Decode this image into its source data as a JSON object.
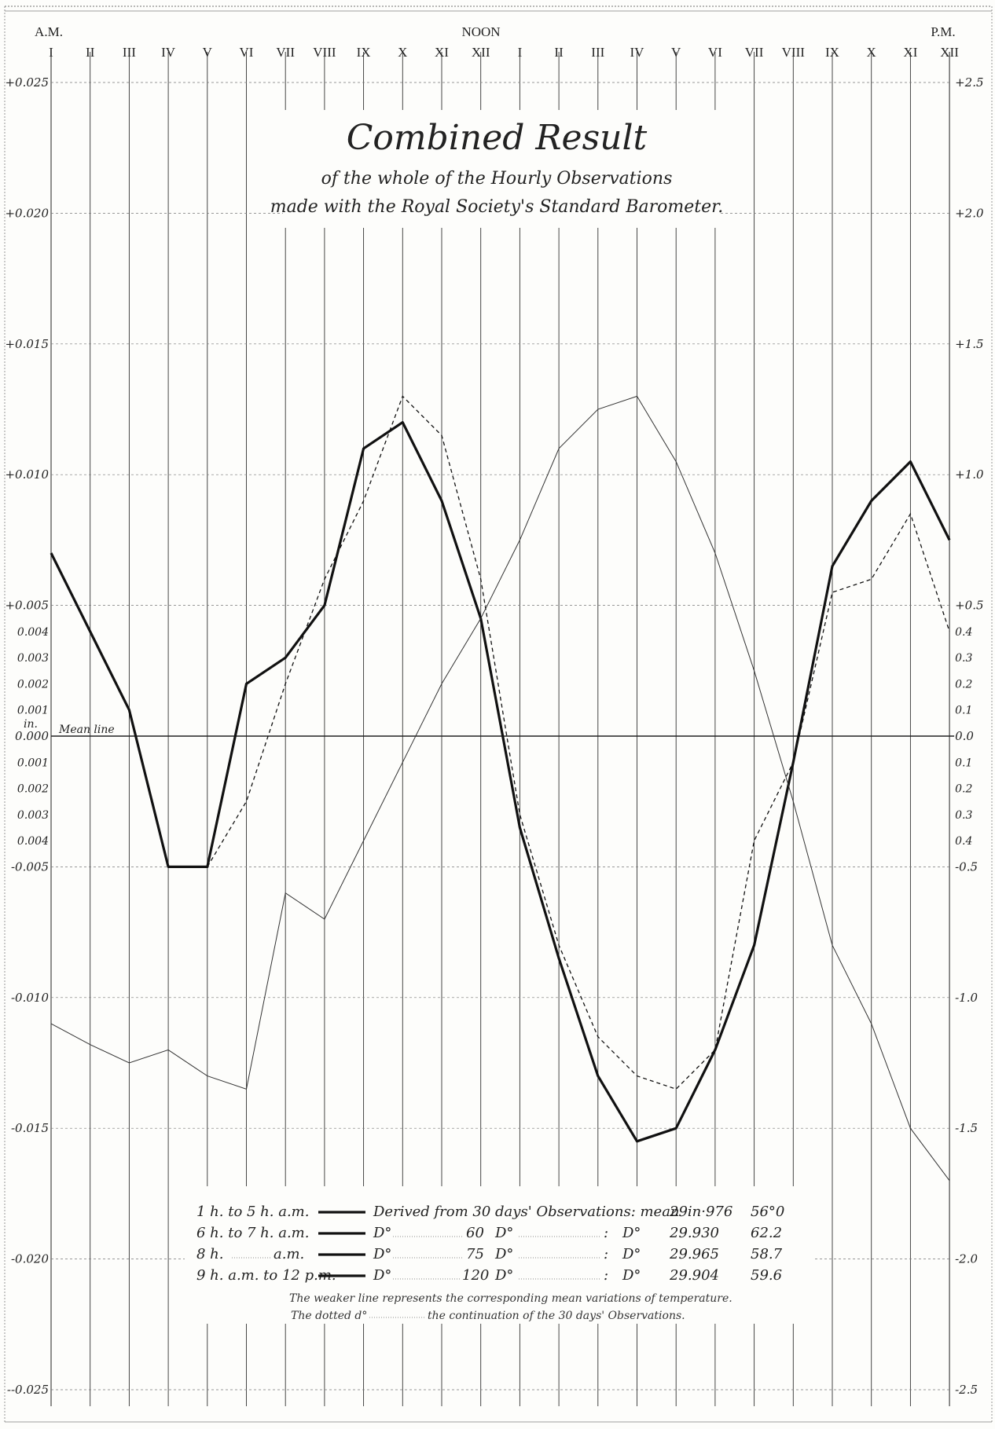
{
  "chart_data": {
    "type": "line",
    "title": "Combined Result",
    "subtitle_lines": [
      "of the whole of the Hourly Observations",
      "made with the Royal Society's Standard Barometer."
    ],
    "am_label": "A.M.",
    "noon_label": "NOON",
    "pm_label": "P.M.",
    "hours": [
      "I",
      "II",
      "III",
      "IV",
      "V",
      "VI",
      "VII",
      "VIII",
      "IX",
      "X",
      "XI",
      "XII",
      "I",
      "II",
      "III",
      "IV",
      "V",
      "VI",
      "VII",
      "VIII",
      "IX",
      "X",
      "XI",
      "XII"
    ],
    "y_unit_label": "in.",
    "mean_line_label": "Mean line",
    "ylim": [
      -0.025,
      0.025
    ],
    "y2lim": [
      -2.5,
      2.5
    ],
    "left_ticks": [
      {
        "v": 0.025,
        "t": "+0.025"
      },
      {
        "v": 0.02,
        "t": "+0.020"
      },
      {
        "v": 0.015,
        "t": "+0.015"
      },
      {
        "v": 0.01,
        "t": "+0.010"
      },
      {
        "v": 0.005,
        "t": "+0.005"
      },
      {
        "v": 0.004,
        "t": "0.004"
      },
      {
        "v": 0.003,
        "t": "0.003"
      },
      {
        "v": 0.002,
        "t": "0.002"
      },
      {
        "v": 0.001,
        "t": "0.001"
      },
      {
        "v": 0.0,
        "t": "0.000"
      },
      {
        "v": -0.001,
        "t": "0.001"
      },
      {
        "v": -0.002,
        "t": "0.002"
      },
      {
        "v": -0.003,
        "t": "0.003"
      },
      {
        "v": -0.004,
        "t": "0.004"
      },
      {
        "v": -0.005,
        "t": "-0.005"
      },
      {
        "v": -0.01,
        "t": "-0.010"
      },
      {
        "v": -0.015,
        "t": "-0.015"
      },
      {
        "v": -0.02,
        "t": "-0.020"
      },
      {
        "v": -0.025,
        "t": "--0.025"
      }
    ],
    "right_ticks": [
      {
        "v": 2.5,
        "t": "+2.5"
      },
      {
        "v": 2.0,
        "t": "+2.0"
      },
      {
        "v": 1.5,
        "t": "+1.5"
      },
      {
        "v": 1.0,
        "t": "+1.0"
      },
      {
        "v": 0.5,
        "t": "+0.5"
      },
      {
        "v": 0.4,
        "t": "0.4"
      },
      {
        "v": 0.3,
        "t": "0.3"
      },
      {
        "v": 0.2,
        "t": "0.2"
      },
      {
        "v": 0.1,
        "t": "0.1"
      },
      {
        "v": 0.0,
        "t": "0.0"
      },
      {
        "v": -0.1,
        "t": "0.1"
      },
      {
        "v": -0.2,
        "t": "0.2"
      },
      {
        "v": -0.3,
        "t": "0.3"
      },
      {
        "v": -0.4,
        "t": "0.4"
      },
      {
        "v": -0.5,
        "t": "-0.5"
      },
      {
        "v": -1.0,
        "t": "-1.0"
      },
      {
        "v": -1.5,
        "t": "-1.5"
      },
      {
        "v": -2.0,
        "t": "-2.0"
      },
      {
        "v": -2.5,
        "t": "-2.5"
      }
    ],
    "series": [
      {
        "style": "thick",
        "values": [
          0.007,
          0.004,
          0.001,
          -0.005,
          -0.005,
          0.002,
          0.003,
          0.005,
          0.011,
          0.012,
          0.009,
          0.0045,
          -0.0035,
          -0.0085,
          -0.013,
          -0.0155,
          -0.015,
          -0.012,
          -0.008,
          -0.001,
          0.0065,
          0.009,
          0.0105,
          0.0075
        ]
      },
      {
        "style": "dotted",
        "values": [
          null,
          null,
          null,
          null,
          -0.005,
          -0.0025,
          0.002,
          0.006,
          0.009,
          0.013,
          0.0115,
          0.006,
          -0.003,
          -0.008,
          -0.0115,
          -0.013,
          -0.0135,
          -0.012,
          -0.004,
          -0.001,
          0.0055,
          0.006,
          0.0085,
          0.004
        ]
      },
      {
        "style": "thin",
        "axis": "right",
        "values": [
          -1.1,
          -1.18,
          -1.25,
          -1.2,
          -1.3,
          -1.35,
          -0.6,
          -0.7,
          -0.4,
          -0.1,
          0.2,
          0.45,
          0.75,
          1.1,
          1.25,
          1.3,
          1.05,
          0.7,
          0.25,
          -0.25,
          -0.8,
          -1.1,
          -1.5,
          -1.7
        ]
      }
    ],
    "legend": [
      {
        "period": "1 h. to 5 h. a.m.",
        "text": "Derived from 30 days' Observations: mean",
        "bar": "29in·976",
        "temp": "56°0"
      },
      {
        "period": "6 h. to 7 h. a.m.",
        "text": "D°",
        "days": "60",
        "days_label": "D°",
        "sep": ":",
        "mean": "D°",
        "bar": "29.930",
        "temp": "62.2"
      },
      {
        "period": "8 h.",
        "period2": "a.m.",
        "text": "D°",
        "days": "75",
        "days_label": "D°",
        "sep": ":",
        "mean": "D°",
        "bar": "29.965",
        "temp": "58.7"
      },
      {
        "period": "9 h. a.m. to 12 p.m.",
        "text": "D°",
        "days": "120",
        "days_label": "D°",
        "sep": ":",
        "mean": "D°",
        "bar": "29.904",
        "temp": "59.6"
      }
    ],
    "notes": [
      "The weaker line represents the corresponding mean variations of temperature.",
      "The dotted d°",
      "the continuation of the 30 days' Observations."
    ]
  }
}
